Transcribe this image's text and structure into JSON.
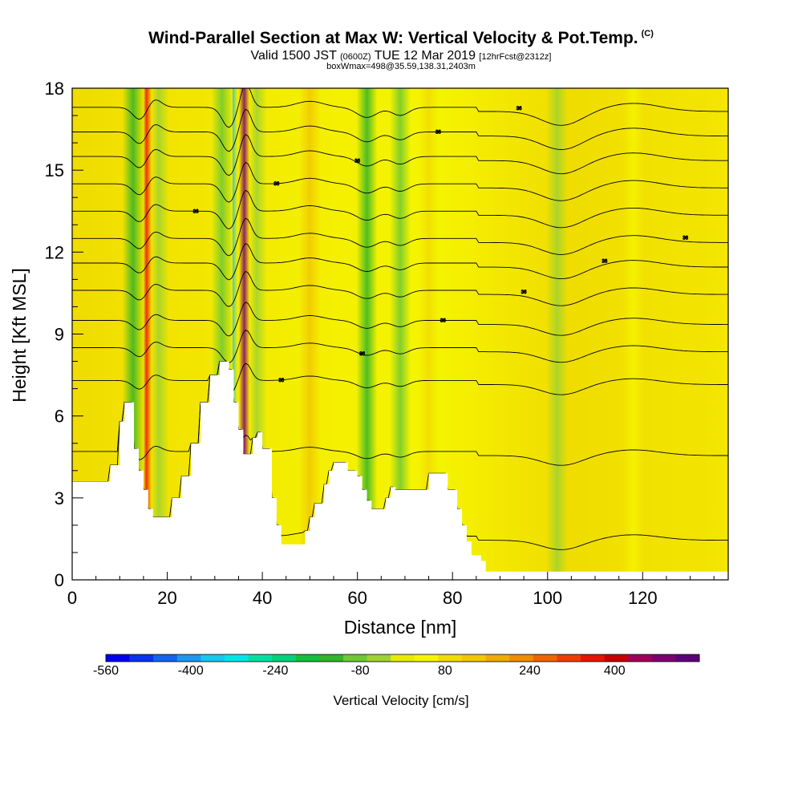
{
  "title": {
    "main": "Wind-Parallel Section at Max W: Vertical Velocity & Pot.Temp.",
    "copyright": "(C)",
    "valid_prefix": "Valid 1500 JST",
    "valid_utc": "(0600Z)",
    "valid_date": "TUE 12 Mar 2019",
    "forecast": "[12hrFcst@2312z]",
    "box": "boxWmax=498@35.59,138.31,2403m"
  },
  "chart_data": {
    "type": "heatmap",
    "xlabel": "Distance [nm]",
    "ylabel": "Height [Kft MSL]",
    "xlim": [
      0,
      138
    ],
    "ylim": [
      0,
      18
    ],
    "x_ticks": [
      0,
      20,
      40,
      60,
      80,
      100,
      120
    ],
    "y_ticks": [
      0,
      3,
      6,
      9,
      12,
      15,
      18
    ],
    "colorbar": {
      "label": "Vertical Velocity [cm/s]",
      "ticks": [
        -560,
        -400,
        -240,
        -80,
        80,
        240,
        400
      ],
      "min": -560,
      "max": 560,
      "colors": [
        "#0000f0",
        "#0a32f0",
        "#1464f0",
        "#1e96f0",
        "#14c8f0",
        "#00e6e6",
        "#00e0a0",
        "#00d278",
        "#14be3c",
        "#32b428",
        "#6ec832",
        "#a0d232",
        "#e6eb00",
        "#f5f500",
        "#f0dc00",
        "#f0c800",
        "#f0aa00",
        "#f08c00",
        "#f06400",
        "#f03c00",
        "#e61400",
        "#c80000",
        "#a0005a",
        "#7d006e",
        "#5a0078"
      ]
    },
    "terrain": [
      [
        0,
        3.6
      ],
      [
        5,
        3.6
      ],
      [
        8,
        4.2
      ],
      [
        10,
        5.8
      ],
      [
        11,
        6.5
      ],
      [
        13,
        4.8
      ],
      [
        14,
        4.0
      ],
      [
        15,
        3.3
      ],
      [
        16,
        2.6
      ],
      [
        17,
        2.3
      ],
      [
        19,
        2.3
      ],
      [
        21,
        3.0
      ],
      [
        23,
        3.8
      ],
      [
        25,
        5.0
      ],
      [
        27,
        6.5
      ],
      [
        29,
        7.5
      ],
      [
        31,
        8.0
      ],
      [
        33,
        7.7
      ],
      [
        34,
        6.5
      ],
      [
        35,
        5.5
      ],
      [
        36,
        4.6
      ],
      [
        38,
        5.2
      ],
      [
        39,
        5.4
      ],
      [
        40,
        4.8
      ],
      [
        42,
        3.0
      ],
      [
        43,
        2.0
      ],
      [
        44,
        1.3
      ],
      [
        47,
        1.3
      ],
      [
        49,
        1.8
      ],
      [
        50,
        2.3
      ],
      [
        51,
        2.8
      ],
      [
        53,
        3.5
      ],
      [
        54,
        4.0
      ],
      [
        55,
        4.3
      ],
      [
        57,
        4.3
      ],
      [
        58,
        4.0
      ],
      [
        60,
        3.8
      ],
      [
        61,
        3.3
      ],
      [
        62,
        2.9
      ],
      [
        63,
        2.6
      ],
      [
        65,
        2.6
      ],
      [
        66,
        3.0
      ],
      [
        67,
        3.4
      ],
      [
        68,
        3.3
      ],
      [
        70,
        3.3
      ],
      [
        72,
        3.3
      ],
      [
        75,
        3.9
      ],
      [
        77,
        3.9
      ],
      [
        79,
        3.3
      ],
      [
        81,
        2.6
      ],
      [
        82,
        2.0
      ],
      [
        83,
        1.4
      ],
      [
        84,
        0.9
      ],
      [
        86,
        0.7
      ],
      [
        87,
        0.3
      ],
      [
        138,
        0.3
      ]
    ],
    "w_features": [
      {
        "x": 12.8,
        "w": -140
      },
      {
        "x": 15.6,
        "w": 340
      },
      {
        "x": 18.2,
        "w": -40
      },
      {
        "x": 31.5,
        "w": -110
      },
      {
        "x": 33.6,
        "w": -380
      },
      {
        "x": 36.2,
        "w": 480
      },
      {
        "x": 38.8,
        "w": -40
      },
      {
        "x": 50,
        "w": 120
      },
      {
        "x": 62,
        "w": -120
      },
      {
        "x": 69,
        "w": -100
      },
      {
        "x": 75,
        "w": 70
      },
      {
        "x": 102,
        "w": -60
      },
      {
        "x": 118,
        "w": 60
      }
    ],
    "theta_contours": {
      "base_levels": [
        1.6,
        4.7,
        7.3,
        8.5,
        9.5,
        10.6,
        11.6,
        12.5,
        13.5,
        14.5,
        15.5,
        16.4,
        17.3
      ],
      "label_value": "36"
    }
  }
}
